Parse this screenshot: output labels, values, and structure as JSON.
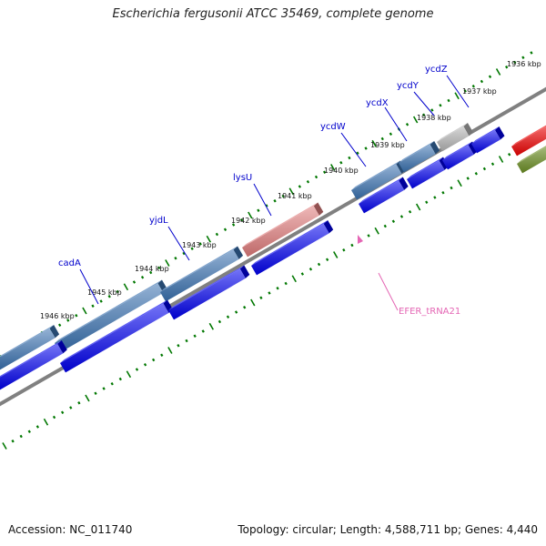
{
  "title": "Escherichia fergusonii ATCC 35469, complete genome",
  "footer": {
    "accession": "Accession: NC_011740",
    "summary": "Topology: circular; Length: 4,588,711 bp; Genes: 4,440"
  },
  "scale_labels": [
    "1936 kbp",
    "1937 kbp",
    "1938 kbp",
    "1939 kbp",
    "1940 kbp",
    "1941 kbp",
    "1942 kbp",
    "1943 kbp",
    "1944 kbp",
    "1945 kbp",
    "1946 kbp"
  ],
  "gene_labels": [
    "ycdZ",
    "ycdY",
    "ycdX",
    "ycdW",
    "lysU",
    "yjdL",
    "cadA"
  ],
  "trna_label": "EFER_tRNA21",
  "colors": {
    "gene_blue": "#0000ee",
    "gene_steelblue": "#3a72b0",
    "trna_pink": "#e07c7c",
    "gene_grey": "#b4b4b4",
    "gene_red": "#ee0000",
    "gene_olive": "#6b8e23",
    "backbone": "#808080",
    "tick_green": "#007700",
    "label_blue": "#0000cc",
    "label_pink": "#e466b4"
  }
}
